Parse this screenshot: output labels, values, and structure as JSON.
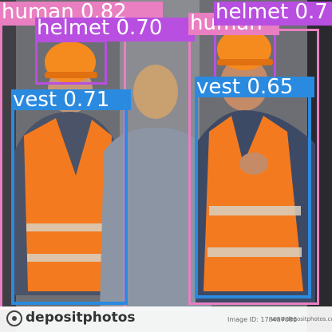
{
  "detections": [
    {
      "label": "human 0.82",
      "color": "#e97fc1"
    },
    {
      "label": "helmet 0.70",
      "color": "#b84fe0"
    },
    {
      "label": "vest 0.71",
      "color": "#2a8ae0"
    },
    {
      "label": "human",
      "color": "#e97fc1"
    },
    {
      "label": "helmet 0.7",
      "color": "#b84fe0"
    },
    {
      "label": "vest 0.65",
      "color": "#2a8ae0"
    }
  ],
  "watermark": {
    "brand": "depositphotos",
    "image_id": "Image ID: 178457086",
    "site": "www.depositphotos.com"
  },
  "colors": {
    "vest_orange": "#f47a20",
    "helmet_orange": "#f58a1f",
    "background": "#6e6e72"
  }
}
